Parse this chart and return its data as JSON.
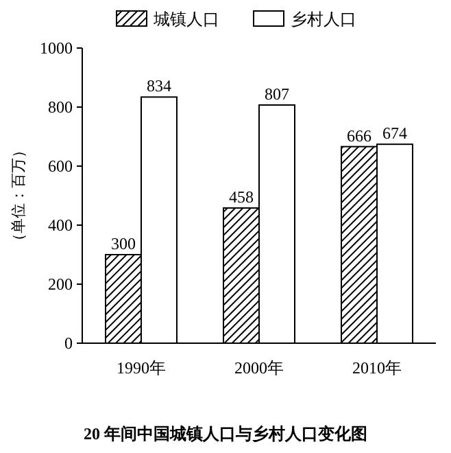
{
  "chart_data": {
    "type": "bar",
    "title": "20 年间中国城镇人口与乡村人口变化图",
    "ylabel": "（单位：百万）",
    "categories": [
      "1990年",
      "2000年",
      "2010年"
    ],
    "series": [
      {
        "name": "城镇人口",
        "color": "#000000",
        "values": [
          300,
          458,
          666
        ]
      },
      {
        "name": "乡村人口",
        "color": "#ffffff",
        "values": [
          834,
          807,
          674
        ]
      }
    ],
    "ylim": [
      0,
      1000
    ],
    "yticks": [
      0,
      200,
      400,
      600,
      800,
      1000
    ],
    "data_labels": true,
    "legend": "top",
    "grid": false
  }
}
